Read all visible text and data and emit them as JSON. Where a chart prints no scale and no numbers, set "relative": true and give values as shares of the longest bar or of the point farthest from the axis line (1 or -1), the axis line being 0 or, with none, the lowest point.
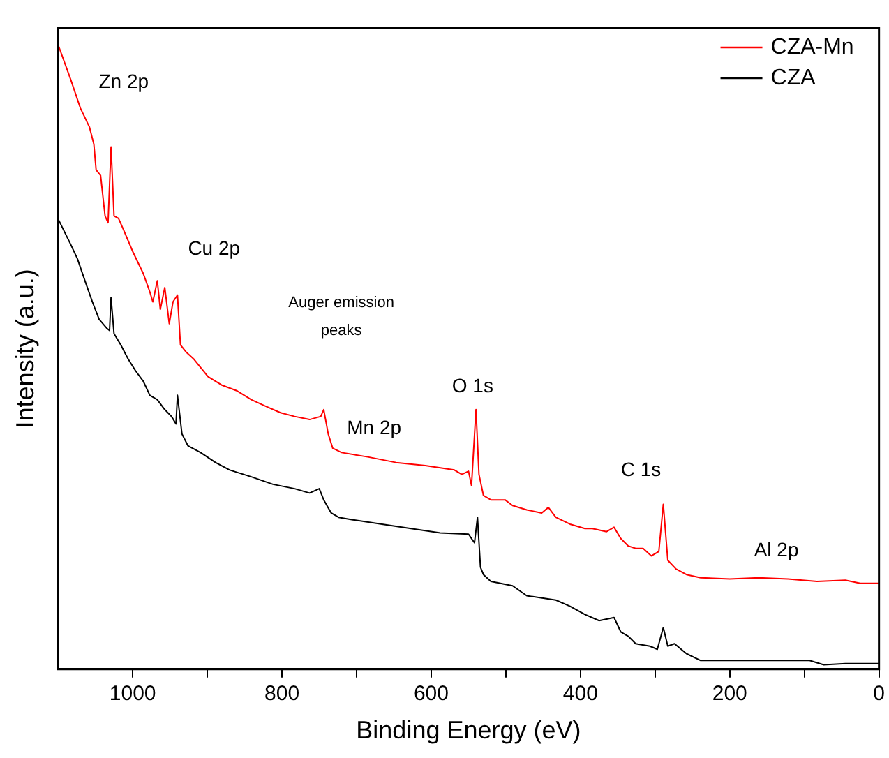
{
  "chart_data": {
    "type": "line",
    "xlabel": "Binding Energy (eV)",
    "ylabel": "Intensity (a.u.)",
    "relative": true,
    "xlim": [
      1100,
      0
    ],
    "xticks": [
      1000,
      {
        "value": 900,
        "label": null
      },
      800,
      {
        "value": 700,
        "label": null
      },
      600,
      {
        "value": 500,
        "label": null
      },
      400,
      {
        "value": 300,
        "label": null
      },
      200,
      {
        "value": 100,
        "label": null
      },
      0
    ],
    "legend": "top right",
    "grid": false,
    "marker": "none",
    "line_style": "solid",
    "series": [
      {
        "name": "CZA-Mn",
        "color": "#ff0000",
        "x": [
          1099,
          1083,
          1070,
          1058,
          1052,
          1049,
          1043,
          1037,
          1033,
          1029,
          1025,
          1019,
          1012,
          1000,
          986,
          977,
          973,
          967,
          963,
          957,
          951,
          946,
          940,
          936,
          928,
          918,
          899,
          880,
          860,
          841,
          821,
          802,
          783,
          763,
          748,
          744,
          738,
          732,
          720,
          685,
          647,
          608,
          569,
          559,
          550,
          546,
          540,
          536,
          530,
          520,
          501,
          491,
          472,
          452,
          443,
          433,
          414,
          394,
          384,
          365,
          355,
          346,
          336,
          326,
          316,
          305,
          295,
          289,
          283,
          272,
          258,
          239,
          200,
          161,
          122,
          83,
          45,
          25,
          0
        ],
        "values": [
          1.0,
          0.947,
          0.901,
          0.871,
          0.843,
          0.802,
          0.793,
          0.728,
          0.717,
          0.839,
          0.728,
          0.724,
          0.705,
          0.671,
          0.636,
          0.606,
          0.59,
          0.624,
          0.578,
          0.613,
          0.555,
          0.59,
          0.601,
          0.521,
          0.509,
          0.498,
          0.47,
          0.456,
          0.447,
          0.433,
          0.422,
          0.412,
          0.406,
          0.401,
          0.406,
          0.417,
          0.378,
          0.355,
          0.348,
          0.341,
          0.332,
          0.327,
          0.32,
          0.313,
          0.318,
          0.295,
          0.417,
          0.313,
          0.279,
          0.272,
          0.272,
          0.263,
          0.256,
          0.251,
          0.26,
          0.244,
          0.233,
          0.226,
          0.226,
          0.221,
          0.228,
          0.21,
          0.198,
          0.194,
          0.194,
          0.182,
          0.189,
          0.265,
          0.175,
          0.161,
          0.152,
          0.147,
          0.145,
          0.147,
          0.145,
          0.141,
          0.143,
          0.138,
          0.138
        ]
      },
      {
        "name": "CZA",
        "color": "#000000",
        "x": [
          1099,
          1083,
          1074,
          1064,
          1054,
          1045,
          1035,
          1031,
          1029,
          1025,
          1016,
          1006,
          996,
          986,
          977,
          967,
          957,
          948,
          942,
          940,
          934,
          926,
          909,
          889,
          870,
          841,
          812,
          783,
          763,
          750,
          744,
          734,
          724,
          705,
          666,
          627,
          588,
          550,
          542,
          538,
          534,
          530,
          520,
          491,
          472,
          433,
          414,
          394,
          375,
          355,
          346,
          336,
          326,
          307,
          297,
          289,
          283,
          274,
          258,
          239,
          142,
          93,
          74,
          45,
          0
        ],
        "values": [
          0.721,
          0.682,
          0.659,
          0.624,
          0.59,
          0.562,
          0.548,
          0.544,
          0.597,
          0.539,
          0.521,
          0.498,
          0.479,
          0.463,
          0.44,
          0.433,
          0.417,
          0.406,
          0.394,
          0.44,
          0.378,
          0.359,
          0.348,
          0.332,
          0.32,
          0.309,
          0.297,
          0.29,
          0.283,
          0.29,
          0.272,
          0.251,
          0.244,
          0.24,
          0.233,
          0.226,
          0.219,
          0.217,
          0.203,
          0.244,
          0.164,
          0.152,
          0.141,
          0.134,
          0.118,
          0.111,
          0.101,
          0.088,
          0.078,
          0.083,
          0.06,
          0.053,
          0.041,
          0.037,
          0.032,
          0.067,
          0.037,
          0.041,
          0.025,
          0.014,
          0.014,
          0.014,
          0.007,
          0.009,
          0.009
        ]
      }
    ],
    "annotations": [
      "Zn 2p",
      "Cu 2p",
      "Auger emission peaks",
      "Mn 2p",
      "O 1s",
      "C 1s",
      "Al 2p"
    ]
  }
}
